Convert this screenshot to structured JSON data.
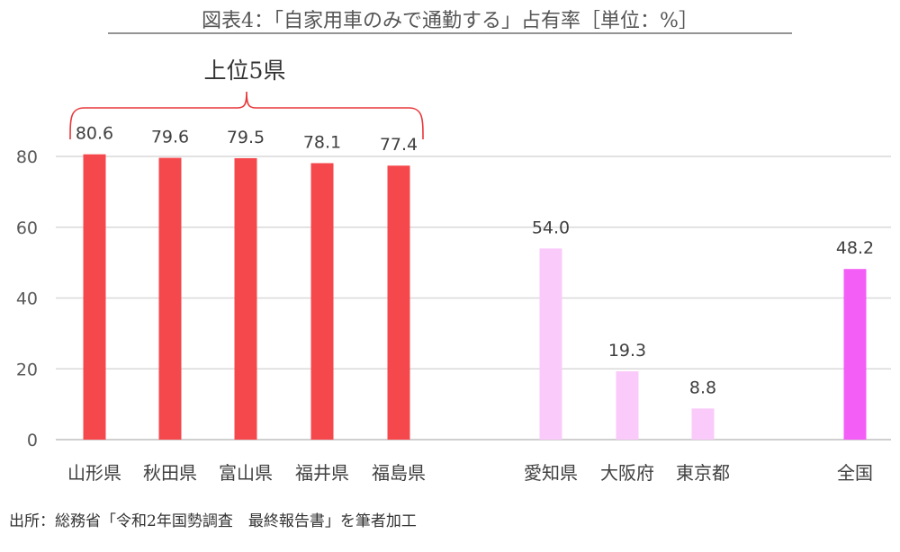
{
  "chart_data": {
    "type": "bar",
    "title": "図表4：「自家用車のみで通勤する」占有率［単位：%］",
    "categories": [
      "山形県",
      "秋田県",
      "富山県",
      "福井県",
      "福島県",
      "愛知県",
      "大阪府",
      "東京都",
      "全国"
    ],
    "values": [
      80.6,
      79.6,
      79.5,
      78.1,
      77.4,
      54.0,
      19.3,
      8.8,
      48.2
    ],
    "value_labels": [
      "80.6",
      "79.6",
      "79.5",
      "78.1",
      "77.4",
      "54.0",
      "19.3",
      "8.8",
      "48.2"
    ],
    "bar_colors": [
      "#f4484c",
      "#f4484c",
      "#f4484c",
      "#f4484c",
      "#f4484c",
      "#facbfa",
      "#facbfa",
      "#facbfa",
      "#f35ff6"
    ],
    "yticks": [
      0,
      20,
      40,
      60,
      80
    ],
    "ylim": [
      0,
      80
    ],
    "xlabel": "",
    "ylabel": "",
    "grid": true,
    "annotation": "上位5県",
    "source_note": "出所：総務省「令和2年国勢調査　最終報告書」を筆者加工"
  }
}
